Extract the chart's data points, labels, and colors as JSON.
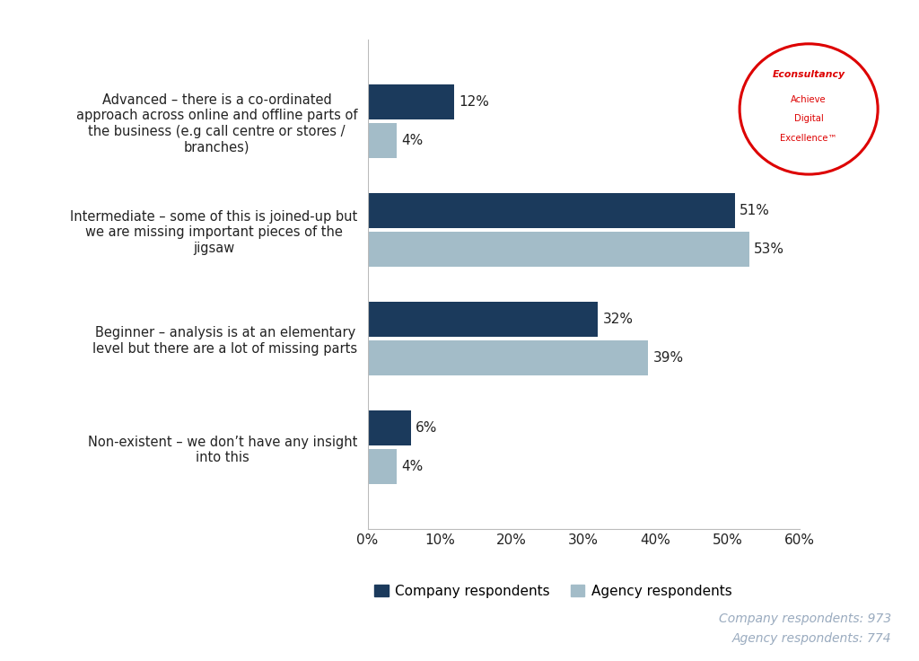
{
  "categories": [
    "Advanced – there is a co-ordinated\napproach across online and offline parts of\nthe business (e.g call centre or stores /\nbranches)",
    "Intermediate – some of this is joined-up but\nwe are missing important pieces of the\njigsaw",
    "Beginner – analysis is at an elementary\nlevel but there are a lot of missing parts",
    "Non-existent – we don’t have any insight\ninto this"
  ],
  "company_values": [
    12,
    51,
    32,
    6
  ],
  "agency_values": [
    4,
    53,
    39,
    4
  ],
  "company_color": "#1b3a5c",
  "agency_color": "#a3bcc8",
  "bar_height": 0.32,
  "xlim": [
    0,
    60
  ],
  "xticks": [
    0,
    10,
    20,
    30,
    40,
    50,
    60
  ],
  "xtick_labels": [
    "0%",
    "10%",
    "20%",
    "30%",
    "40%",
    "50%",
    "60%"
  ],
  "legend_company": "Company respondents",
  "legend_agency": "Agency respondents",
  "footnote_company": "Company respondents: 973",
  "footnote_agency": "Agency respondents: 774",
  "background_color": "#ffffff",
  "label_fontsize": 11,
  "category_fontsize": 10.5,
  "tick_fontsize": 11,
  "legend_fontsize": 11,
  "footnote_fontsize": 10,
  "footnote_color": "#9aabbf",
  "spine_color": "#bbbbbb",
  "text_color": "#222222"
}
